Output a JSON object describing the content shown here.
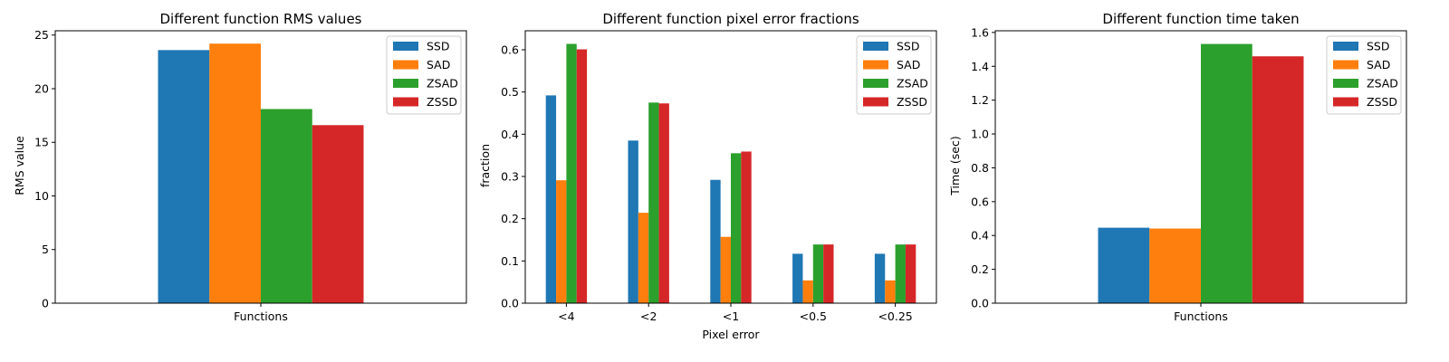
{
  "series_colors": {
    "SSD": "#1f77b4",
    "SAD": "#ff7f0e",
    "ZSAD": "#2ca02c",
    "ZSSD": "#d62728"
  },
  "chart_data": [
    {
      "type": "bar",
      "title": "Different function RMS values",
      "xlabel": "",
      "ylabel": "RMS value",
      "categories": [
        "Functions"
      ],
      "series": [
        {
          "name": "SSD",
          "values": [
            23.6
          ]
        },
        {
          "name": "SAD",
          "values": [
            24.2
          ]
        },
        {
          "name": "ZSAD",
          "values": [
            18.1
          ]
        },
        {
          "name": "ZSSD",
          "values": [
            16.6
          ]
        }
      ],
      "ylim": [
        0,
        25.4
      ],
      "yticks": [
        "0",
        "5",
        "10",
        "15",
        "20",
        "25"
      ],
      "legend": "top-right",
      "grid": false
    },
    {
      "type": "bar",
      "title": "Different function pixel error fractions",
      "xlabel": "Pixel error",
      "ylabel": "fraction",
      "categories": [
        "<4",
        "<2",
        "<1",
        "<0.5",
        "<0.25"
      ],
      "series": [
        {
          "name": "SSD",
          "values": [
            0.492,
            0.385,
            0.292,
            0.117,
            0.117
          ]
        },
        {
          "name": "SAD",
          "values": [
            0.291,
            0.214,
            0.157,
            0.054,
            0.054
          ]
        },
        {
          "name": "ZSAD",
          "values": [
            0.614,
            0.475,
            0.355,
            0.139,
            0.139
          ]
        },
        {
          "name": "ZSSD",
          "values": [
            0.601,
            0.473,
            0.359,
            0.139,
            0.139
          ]
        }
      ],
      "ylim": [
        0,
        0.645
      ],
      "yticks": [
        "0.0",
        "0.1",
        "0.2",
        "0.3",
        "0.4",
        "0.5",
        "0.6"
      ],
      "legend": "top-right",
      "grid": false
    },
    {
      "type": "bar",
      "title": "Different function time taken",
      "xlabel": "",
      "ylabel": "Time (sec)",
      "categories": [
        "Functions"
      ],
      "series": [
        {
          "name": "SSD",
          "values": [
            0.446
          ]
        },
        {
          "name": "SAD",
          "values": [
            0.441
          ]
        },
        {
          "name": "ZSAD",
          "values": [
            1.532
          ]
        },
        {
          "name": "ZSSD",
          "values": [
            1.459
          ]
        }
      ],
      "ylim": [
        0,
        1.61
      ],
      "yticks": [
        "0.0",
        "0.2",
        "0.4",
        "0.6",
        "0.8",
        "1.0",
        "1.2",
        "1.4",
        "1.6"
      ],
      "legend": "top-right",
      "grid": false
    }
  ]
}
